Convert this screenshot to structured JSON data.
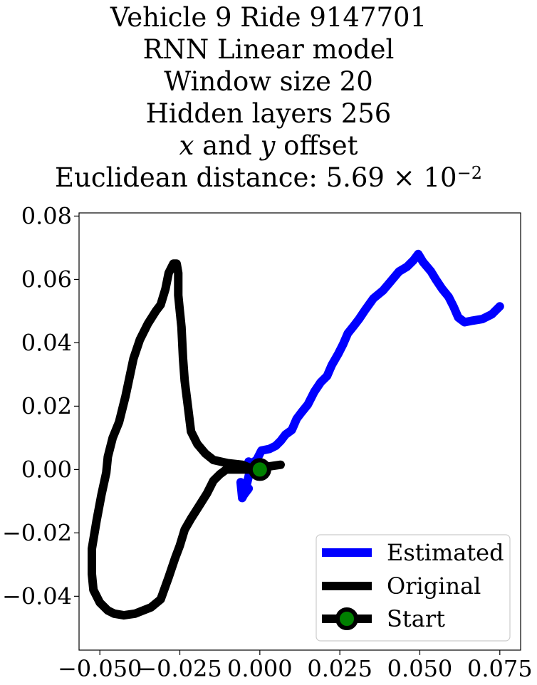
{
  "title_lines": {
    "l1": "Vehicle 9 Ride 9147701",
    "l2": "RNN Linear model",
    "l3": "Window size 20",
    "l4": "Hidden layers 256",
    "l5_x": "x",
    "l5_and": " and ",
    "l5_y": "y",
    "l5_rest": " offset",
    "l6_prefix": "Euclidean distance: 5.69 × 10",
    "l6_exp": "−2"
  },
  "chart_data": {
    "type": "line",
    "xlim": [
      -0.0565,
      0.0815
    ],
    "ylim": [
      -0.057,
      0.081
    ],
    "xticks": [
      -0.05,
      -0.025,
      0.0,
      0.025,
      0.05,
      0.075
    ],
    "yticks": [
      -0.04,
      -0.02,
      0.0,
      0.02,
      0.04,
      0.06,
      0.08
    ],
    "xtick_labels": [
      "−0.050",
      "−0.025",
      "0.000",
      "0.025",
      "0.050",
      "0.075"
    ],
    "ytick_labels": [
      "−0.04",
      "−0.02",
      "0.00",
      "0.02",
      "0.04",
      "0.06",
      "0.08"
    ],
    "grid": false,
    "legend_position": "lower-right",
    "series": [
      {
        "name": "Estimated",
        "color": "#0000ff",
        "x": [
          -0.0035,
          -0.005,
          -0.0055,
          -0.006,
          -0.0045,
          -0.003,
          -0.0035,
          -0.0025,
          -0.001,
          0.0005,
          0.003,
          0.005,
          0.0065,
          0.008,
          0.01,
          0.0115,
          0.013,
          0.015,
          0.017,
          0.019,
          0.021,
          0.0225,
          0.0245,
          0.026,
          0.0275,
          0.0295,
          0.031,
          0.033,
          0.0355,
          0.0385,
          0.041,
          0.0435,
          0.046,
          0.048,
          0.0495,
          0.051,
          0.0535,
          0.055,
          0.057,
          0.059,
          0.0605,
          0.062,
          0.064,
          0.0665,
          0.0695,
          0.0725,
          0.075
        ],
        "y": [
          -0.006,
          -0.008,
          -0.009,
          -0.004,
          -0.0065,
          0.0,
          0.0025,
          0.002,
          0.003,
          0.006,
          0.0065,
          0.0075,
          0.009,
          0.011,
          0.0125,
          0.016,
          0.018,
          0.0205,
          0.0245,
          0.0275,
          0.0295,
          0.033,
          0.0365,
          0.0395,
          0.043,
          0.0455,
          0.0475,
          0.0505,
          0.054,
          0.0565,
          0.0595,
          0.0625,
          0.064,
          0.066,
          0.068,
          0.0655,
          0.0625,
          0.06,
          0.057,
          0.0545,
          0.0515,
          0.048,
          0.0465,
          0.047,
          0.0475,
          0.049,
          0.0515
        ]
      },
      {
        "name": "Original",
        "color": "#000000",
        "x": [
          0.0065,
          0.003,
          0.0,
          -0.003,
          -0.0055,
          -0.01,
          -0.0145,
          -0.017,
          -0.0195,
          -0.0215,
          -0.0225,
          -0.0235,
          -0.024,
          -0.0245,
          -0.025,
          -0.0255,
          -0.0255,
          -0.026,
          -0.027,
          -0.0285,
          -0.0295,
          -0.031,
          -0.0325,
          -0.035,
          -0.0375,
          -0.0395,
          -0.042,
          -0.044,
          -0.046,
          -0.0475,
          -0.048,
          -0.0495,
          -0.051,
          -0.0525,
          -0.0525,
          -0.052,
          -0.05,
          -0.0475,
          -0.0455,
          -0.0425,
          -0.039,
          -0.034,
          -0.031,
          -0.0285,
          -0.0265,
          -0.025,
          -0.0235,
          -0.0215,
          -0.019,
          -0.0165,
          -0.0145,
          -0.0125,
          -0.0105,
          -0.008,
          -0.0055,
          -0.003,
          0.0
        ],
        "y": [
          0.0015,
          0.001,
          0.0005,
          0.0005,
          0.0015,
          0.002,
          0.003,
          0.005,
          0.008,
          0.012,
          0.02,
          0.028,
          0.035,
          0.045,
          0.05,
          0.055,
          0.062,
          0.065,
          0.065,
          0.062,
          0.057,
          0.052,
          0.05,
          0.046,
          0.041,
          0.035,
          0.023,
          0.015,
          0.01,
          0.004,
          -0.001,
          -0.008,
          -0.016,
          -0.025,
          -0.033,
          -0.038,
          -0.042,
          -0.0445,
          -0.0455,
          -0.046,
          -0.0455,
          -0.0435,
          -0.041,
          -0.034,
          -0.028,
          -0.024,
          -0.019,
          -0.0155,
          -0.0115,
          -0.0075,
          -0.0035,
          -0.0015,
          0.0,
          0.0,
          0.0,
          0.0,
          0.0
        ]
      },
      {
        "name": "Start",
        "color": "#000000",
        "marker_face": "#008000",
        "x": [
          0.0
        ],
        "y": [
          0.0
        ]
      }
    ]
  }
}
